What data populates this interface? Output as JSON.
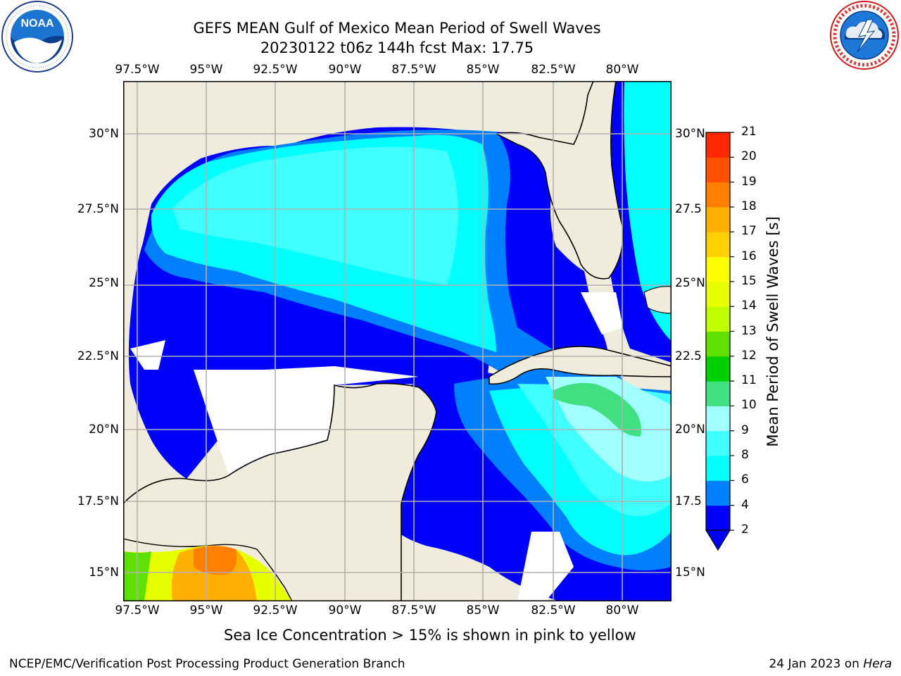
{
  "header": {
    "title_line1": "GEFS MEAN Gulf of Mexico Mean Period of Swell Waves",
    "title_line2": "20230122 t06z 144h fcst   Max: 17.75"
  },
  "logos": {
    "noaa_text": "NOAA",
    "noaa_ring_text": "NATIONAL OCEANIC AND ATMOSPHERIC ADMINISTRATION · U.S. DEPARTMENT OF COMMERCE",
    "nws_ring_text": "NATIONAL WEATHER SERVICE"
  },
  "map": {
    "lon_ticks": [
      "97.5°W",
      "95°W",
      "92.5°W",
      "90°W",
      "87.5°W",
      "85°W",
      "82.5°W",
      "80°W"
    ],
    "lat_ticks_left": [
      "30°N",
      "27.5°N",
      "25°N",
      "22.5°N",
      "20°N",
      "17.5°N",
      "15°N"
    ],
    "lat_ticks_right": [
      "30°N",
      "27.5",
      "25°N",
      "22.5",
      "20°N",
      "17.5",
      "15°N"
    ],
    "extent": {
      "lon": [
        -98,
        -79
      ],
      "lat": [
        14,
        32
      ]
    },
    "colors": {
      "land": "#efecdc",
      "no_data": "#ffffff",
      "grid": "#b0b0b0",
      "coast": "#000000"
    }
  },
  "colorbar": {
    "label": "Mean Period of Swell Waves [s]",
    "ticks": [
      "2",
      "4",
      "6",
      "8",
      "9",
      "10",
      "11",
      "12",
      "13",
      "14",
      "15",
      "16",
      "17",
      "18",
      "19",
      "20",
      "21"
    ],
    "colors": [
      "#0000ff",
      "#0080ff",
      "#00ffff",
      "#40ffff",
      "#a0ffff",
      "#40e080",
      "#00d000",
      "#60e000",
      "#c0ff00",
      "#e8ff00",
      "#ffff00",
      "#ffd000",
      "#ffb000",
      "#ff8000",
      "#ff5000",
      "#ff2800",
      "#ff0000"
    ],
    "under_color": "#0000ff",
    "extend": "min"
  },
  "chart_data": {
    "type": "heatmap",
    "title": "GEFS MEAN Gulf of Mexico Mean Period of Swell Waves",
    "subtitle": "20230122 t06z 144h fcst   Max: 17.75",
    "variable_label": "Mean Period of Swell Waves [s]",
    "color_levels": [
      2,
      4,
      6,
      8,
      9,
      10,
      11,
      12,
      13,
      14,
      15,
      16,
      17,
      18,
      19,
      20,
      21
    ],
    "max_value": 17.75,
    "x_range": [
      -98,
      -79
    ],
    "y_range": [
      14,
      32
    ],
    "x_ticks": [
      "97.5°W",
      "95°W",
      "92.5°W",
      "90°W",
      "87.5°W",
      "85°W",
      "82.5°W",
      "80°W"
    ],
    "y_ticks": [
      "30°N",
      "27.5°N",
      "25°N",
      "22.5°N",
      "20°N",
      "17.5°N",
      "15°N"
    ],
    "grid": true
  },
  "notes": {
    "ice_note": "Sea Ice Concentration > 15% is shown in pink to yellow"
  },
  "footer": {
    "left": "NCEP/EMC/Verification Post Processing Product Generation Branch",
    "date": "24 Jan 2023 on ",
    "machine": "Hera"
  }
}
